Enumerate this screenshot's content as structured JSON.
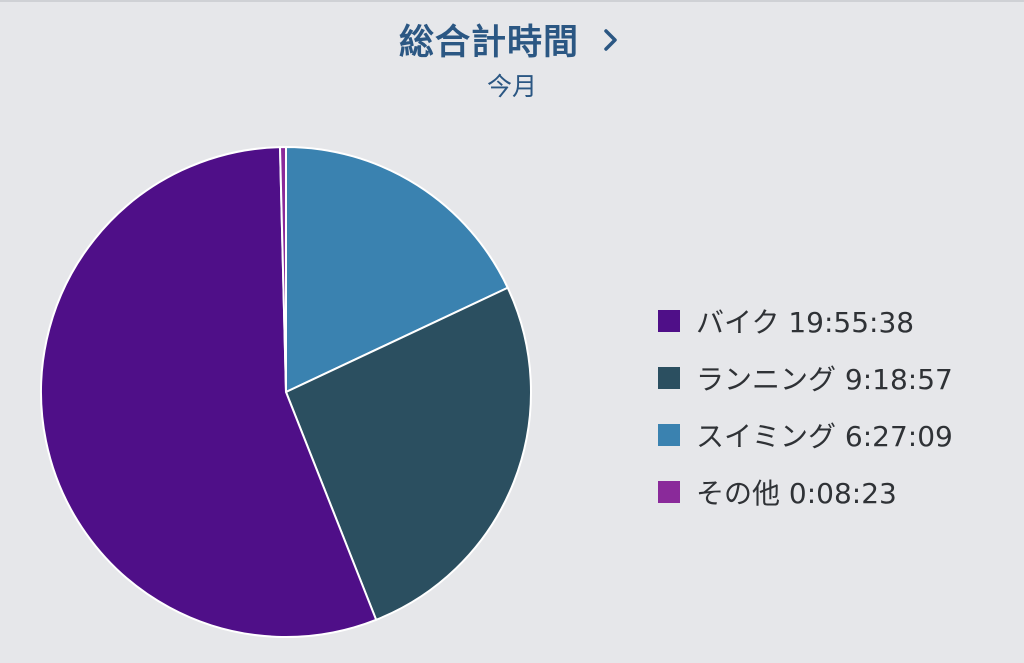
{
  "header": {
    "title": "総合計時間",
    "subtitle": "今月"
  },
  "colors": {
    "background": "#e6e7ea",
    "title": "#2b5783",
    "bike": "#4f0f88",
    "running": "#2b4f60",
    "swimming": "#3a82b0",
    "other": "#8a2a9a"
  },
  "icons": {
    "title_chevron": "chevron-right-icon"
  },
  "chart_data": {
    "type": "pie",
    "title": "総合計時間",
    "subtitle": "今月",
    "legend_position": "right",
    "unit": "h:mm:ss",
    "slices": [
      {
        "name": "バイク",
        "label": "19:55:38",
        "value_seconds": 71738,
        "color": "#4f0f88"
      },
      {
        "name": "ランニング",
        "label": "9:18:57",
        "value_seconds": 33537,
        "color": "#2b4f60"
      },
      {
        "name": "スイミング",
        "label": "6:27:09",
        "value_seconds": 23229,
        "color": "#3a82b0"
      },
      {
        "name": "その他",
        "label": "0:08:23",
        "value_seconds": 503,
        "color": "#8a2a9a"
      }
    ]
  }
}
